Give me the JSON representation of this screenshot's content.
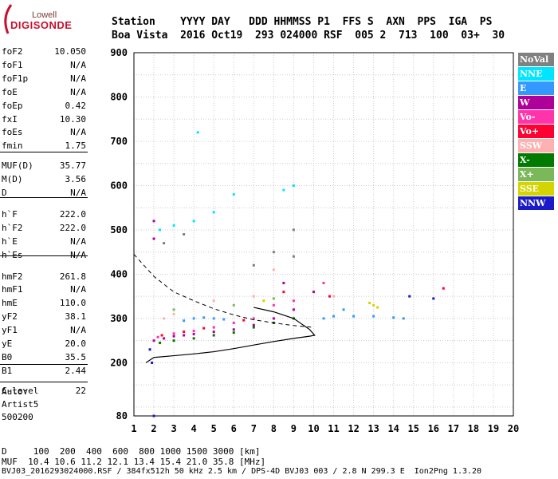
{
  "logo": {
    "top": "Lowell",
    "main": "DIGISONDE"
  },
  "header": {
    "line1": "Station    YYYY DAY   DDD HHMMSS P1  FFS S  AXN  PPS  IGA  PS",
    "line2": "Boa Vista  2016 Oct19  293 024000 RSF  005 2  713  100  03+  30"
  },
  "params": [
    {
      "label": "foF2",
      "value": "10.050"
    },
    {
      "label": "foF1",
      "value": "N/A"
    },
    {
      "label": "foF1p",
      "value": "N/A"
    },
    {
      "label": "foE",
      "value": "N/A"
    },
    {
      "label": "foEp",
      "value": "0.42"
    },
    {
      "label": "fxI",
      "value": "10.30"
    },
    {
      "label": "foEs",
      "value": "N/A"
    },
    {
      "label": "fmin",
      "value": "1.75"
    },
    {
      "label": "MUF(D)",
      "value": "35.77"
    },
    {
      "label": "M(D)",
      "value": "3.56"
    },
    {
      "label": "D",
      "value": "N/A"
    },
    {
      "label": "h`F",
      "value": "222.0"
    },
    {
      "label": "h`F2",
      "value": "222.0"
    },
    {
      "label": "h`E",
      "value": "N/A"
    },
    {
      "label": "h`Es",
      "value": "N/A"
    },
    {
      "label": "hmF2",
      "value": "261.8"
    },
    {
      "label": "hmF1",
      "value": "N/A"
    },
    {
      "label": "hmE",
      "value": "110.0"
    },
    {
      "label": "yF2",
      "value": "38.1"
    },
    {
      "label": "yF1",
      "value": "N/A"
    },
    {
      "label": "yE",
      "value": "20.0"
    },
    {
      "label": "B0",
      "value": "35.5"
    },
    {
      "label": "B1",
      "value": "2.44"
    },
    {
      "label": "C-level",
      "value": "22"
    }
  ],
  "auto": {
    "label": "Auto:",
    "artist": "Artist5",
    "code": "500200"
  },
  "bottom": {
    "d_line": "D     100  200  400  600  800 1000 1500 3000 [km]",
    "muf_line": "MUF  10.4 10.6 11.2 12.1 13.4 15.4 21.0 35.8 [MHz]",
    "footer": "BVJ03_2016293024000.RSF / 384fx512h 50 kHz 2.5 km / DPS-4D BVJ03 003 / 2.8 N 299.3 E  Ion2Png 1.3.20"
  },
  "legend": [
    {
      "label": "NoVal",
      "color": "#808080"
    },
    {
      "label": "NNE",
      "color": "#00e5ff"
    },
    {
      "label": "E",
      "color": "#3399ff"
    },
    {
      "label": "W",
      "color": "#b0009a"
    },
    {
      "label": "Vo-",
      "color": "#ff33aa"
    },
    {
      "label": "Vo+",
      "color": "#ff0033"
    },
    {
      "label": "SSW",
      "color": "#ffb0b0"
    },
    {
      "label": "X-",
      "color": "#007a00"
    },
    {
      "label": "X+",
      "color": "#7ab85a"
    },
    {
      "label": "SSE",
      "color": "#d4d400"
    },
    {
      "label": "NNW",
      "color": "#1a1ac8"
    }
  ],
  "chart_data": {
    "type": "scatter",
    "xlim": [
      1,
      20
    ],
    "ylim": [
      80,
      900
    ],
    "x_ticks": [
      1,
      2,
      3,
      4,
      5,
      6,
      7,
      8,
      9,
      10,
      11,
      12,
      13,
      14,
      15,
      16,
      17,
      18,
      19,
      20
    ],
    "y_ticks": [
      80,
      200,
      300,
      400,
      500,
      600,
      700,
      800,
      900
    ],
    "grid": true,
    "series": [
      {
        "name": "W",
        "color": "#b0009a",
        "points": [
          [
            2.0,
            250
          ],
          [
            2.5,
            255
          ],
          [
            3.0,
            260
          ],
          [
            3.5,
            262
          ],
          [
            4.0,
            265
          ],
          [
            5.0,
            270
          ],
          [
            6.0,
            275
          ],
          [
            7.0,
            285
          ],
          [
            8.0,
            300
          ],
          [
            8.5,
            380
          ],
          [
            9.0,
            320
          ],
          [
            10.0,
            360
          ],
          [
            2.0,
            480
          ],
          [
            2.0,
            520
          ]
        ]
      },
      {
        "name": "E",
        "color": "#3399ff",
        "points": [
          [
            3.5,
            295
          ],
          [
            4.0,
            300
          ],
          [
            4.5,
            302
          ],
          [
            5.0,
            300
          ],
          [
            5.5,
            298
          ],
          [
            10.5,
            300
          ],
          [
            11.0,
            305
          ],
          [
            12.0,
            305
          ],
          [
            13.0,
            305
          ],
          [
            14.0,
            302
          ],
          [
            14.5,
            300
          ],
          [
            11.5,
            320
          ]
        ]
      },
      {
        "name": "Vo-",
        "color": "#ff33aa",
        "points": [
          [
            2.2,
            258
          ],
          [
            3.0,
            266
          ],
          [
            4.0,
            272
          ],
          [
            5.0,
            280
          ],
          [
            6.0,
            290
          ],
          [
            7.0,
            300
          ],
          [
            8.0,
            330
          ],
          [
            9.0,
            340
          ],
          [
            10.5,
            380
          ]
        ]
      },
      {
        "name": "Vo+",
        "color": "#ff0033",
        "points": [
          [
            2.4,
            262
          ],
          [
            3.5,
            270
          ],
          [
            4.5,
            278
          ],
          [
            6.5,
            296
          ],
          [
            8.5,
            360
          ],
          [
            10.8,
            350
          ],
          [
            16.5,
            368
          ]
        ]
      },
      {
        "name": "SSW",
        "color": "#ffb0b0",
        "points": [
          [
            2.5,
            300
          ],
          [
            3.0,
            310
          ],
          [
            5.0,
            340
          ],
          [
            7.0,
            350
          ],
          [
            8.0,
            410
          ],
          [
            11.0,
            350
          ]
        ]
      },
      {
        "name": "X-",
        "color": "#007a00",
        "points": [
          [
            2.3,
            245
          ],
          [
            3.0,
            250
          ],
          [
            4.0,
            255
          ],
          [
            5.0,
            262
          ],
          [
            6.0,
            268
          ],
          [
            7.0,
            280
          ],
          [
            8.0,
            290
          ],
          [
            9.0,
            300
          ]
        ]
      },
      {
        "name": "X+",
        "color": "#7ab85a",
        "points": [
          [
            3.0,
            320
          ],
          [
            6.0,
            330
          ],
          [
            8.0,
            345
          ]
        ]
      },
      {
        "name": "SSE",
        "color": "#d4d400",
        "points": [
          [
            13.0,
            330
          ],
          [
            13.2,
            325
          ],
          [
            12.8,
            335
          ],
          [
            7.5,
            340
          ]
        ]
      },
      {
        "name": "NNW",
        "color": "#1a1ac8",
        "points": [
          [
            1.8,
            230
          ],
          [
            1.9,
            200
          ],
          [
            2.0,
            80
          ],
          [
            14.8,
            350
          ],
          [
            16.0,
            345
          ]
        ]
      },
      {
        "name": "NNE",
        "color": "#00e5ff",
        "points": [
          [
            2.3,
            500
          ],
          [
            3.0,
            510
          ],
          [
            4.0,
            520
          ],
          [
            5.0,
            540
          ],
          [
            6.0,
            580
          ],
          [
            8.5,
            590
          ],
          [
            9.0,
            600
          ],
          [
            4.2,
            720
          ]
        ]
      },
      {
        "name": "NoVal",
        "color": "#808080",
        "points": [
          [
            2.5,
            470
          ],
          [
            3.5,
            490
          ],
          [
            7.0,
            420
          ],
          [
            8.0,
            450
          ],
          [
            9.0,
            440
          ],
          [
            9.0,
            500
          ]
        ]
      }
    ],
    "profile_curve": [
      [
        1.6,
        200
      ],
      [
        2,
        212
      ],
      [
        3,
        216
      ],
      [
        4,
        220
      ],
      [
        5,
        225
      ],
      [
        6,
        232
      ],
      [
        7,
        240
      ],
      [
        8,
        248
      ],
      [
        9,
        255
      ],
      [
        9.8,
        260
      ],
      [
        10.05,
        262
      ],
      [
        9.8,
        275
      ],
      [
        9.0,
        300
      ],
      [
        8.0,
        315
      ],
      [
        7.0,
        325
      ]
    ],
    "dashed_curve": [
      [
        1,
        445
      ],
      [
        1.5,
        420
      ],
      [
        2,
        395
      ],
      [
        3,
        360
      ],
      [
        4,
        340
      ],
      [
        5,
        322
      ],
      [
        6,
        308
      ],
      [
        7,
        297
      ],
      [
        8,
        290
      ],
      [
        9,
        284
      ],
      [
        10,
        280
      ]
    ]
  }
}
